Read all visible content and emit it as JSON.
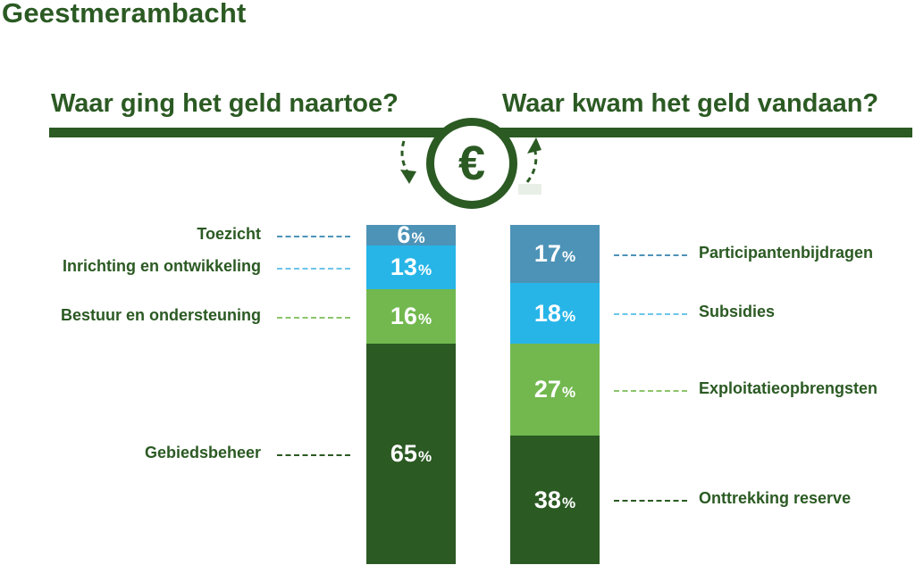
{
  "title": "Geestmerambacht",
  "headings": {
    "left": "Waar ging het geld naartoe?",
    "right": "Waar kwam het geld vandaan?"
  },
  "icon": {
    "center": "euro-icon",
    "symbol": "€"
  },
  "colors": {
    "dark_green": "#2b5a23",
    "light_green": "#72b84f",
    "sky_blue": "#27b5e8",
    "steel_blue": "#4d93b7"
  },
  "chart_data": [
    {
      "type": "bar",
      "stacked": true,
      "percent_unit": "%",
      "segments": [
        {
          "label": "Toezicht",
          "value": 6,
          "display": "6",
          "color": "#4d93b7"
        },
        {
          "label": "Inrichting en ontwikkeling",
          "value": 13,
          "display": "13",
          "color": "#27b5e8"
        },
        {
          "label": "Bestuur en ondersteuning",
          "value": 16,
          "display": "16",
          "color": "#72b84f"
        },
        {
          "label": "Gebiedsbeheer",
          "value": 65,
          "display": "65",
          "color": "#2b5a23"
        }
      ]
    },
    {
      "type": "bar",
      "stacked": true,
      "percent_unit": "%",
      "segments": [
        {
          "label": "Participantenbijdragen",
          "value": 17,
          "display": "17",
          "color": "#4d93b7"
        },
        {
          "label": "Subsidies",
          "value": 18,
          "display": "18",
          "color": "#27b5e8"
        },
        {
          "label": "Exploitatieopbrengsten",
          "value": 27,
          "display": "27",
          "color": "#72b84f"
        },
        {
          "label": "Onttrekking reserve",
          "value": 38,
          "display": "38",
          "color": "#2b5a23"
        }
      ]
    }
  ]
}
